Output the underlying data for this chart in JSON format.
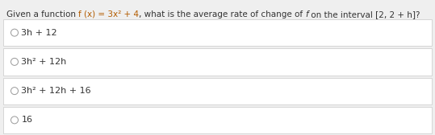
{
  "question_seg1": "Given a function ",
  "question_seg2": "f (x) = 3x² + 4",
  "question_seg3": ", what is the average rate of change of ",
  "question_seg4": "f",
  "question_seg5": " on the interval [2, 2 + h]?",
  "options": [
    "3h + 12",
    "3h² + 12h",
    "3h² + 12h + 16",
    "16"
  ],
  "bg_color": "#efefef",
  "box_color": "#ffffff",
  "border_color": "#d0d0d0",
  "text_color": "#333333",
  "question_color": "#333333",
  "orange_color": "#b35c00",
  "circle_color": "#999999",
  "font_size_question": 7.5,
  "font_size_option": 8.0,
  "figwidth": 5.39,
  "figheight": 1.68,
  "dpi": 100
}
